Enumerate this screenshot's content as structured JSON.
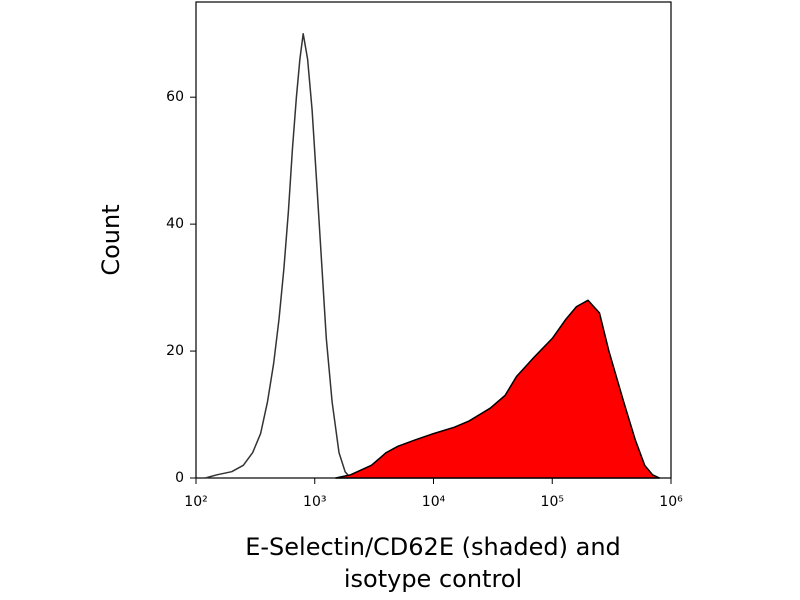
{
  "chart_data": {
    "type": "histogram-overlay",
    "ylabel": "Count",
    "xlabel": [
      "E-Selectin/CD62E (shaded) and",
      "isotype control"
    ],
    "xscale": "log",
    "xlim": [
      100,
      1000000
    ],
    "xticks": [
      {
        "value": 100,
        "label": "10²"
      },
      {
        "value": 1000,
        "label": "10³"
      },
      {
        "value": 10000,
        "label": "10⁴"
      },
      {
        "value": 100000,
        "label": "10⁵"
      },
      {
        "value": 1000000,
        "label": "10⁶"
      }
    ],
    "ylim": [
      0,
      75
    ],
    "yticks": [
      0,
      20,
      40,
      60
    ],
    "series": [
      {
        "color": "#333333",
        "filled": false,
        "x": [
          120,
          150,
          200,
          250,
          300,
          350,
          400,
          450,
          500,
          550,
          600,
          650,
          700,
          750,
          800,
          870,
          950,
          1050,
          1150,
          1250,
          1400,
          1600,
          1800,
          2000
        ],
        "values": [
          0,
          0.5,
          1,
          2,
          4,
          7,
          12,
          18,
          25,
          33,
          42,
          52,
          60,
          66,
          70,
          66,
          58,
          45,
          33,
          22,
          12,
          4,
          1,
          0
        ]
      },
      {
        "color": "#ff0000",
        "filled": true,
        "x": [
          1500,
          2000,
          3000,
          4000,
          5000,
          7000,
          10000,
          15000,
          20000,
          30000,
          40000,
          50000,
          70000,
          100000,
          130000,
          160000,
          200000,
          250000,
          300000,
          400000,
          500000,
          600000,
          700000,
          800000
        ],
        "values": [
          0,
          0.5,
          2,
          4,
          5,
          6,
          7,
          8,
          9,
          11,
          13,
          16,
          19,
          22,
          25,
          27,
          28,
          26,
          20,
          12,
          6,
          2,
          0.5,
          0
        ]
      }
    ]
  }
}
